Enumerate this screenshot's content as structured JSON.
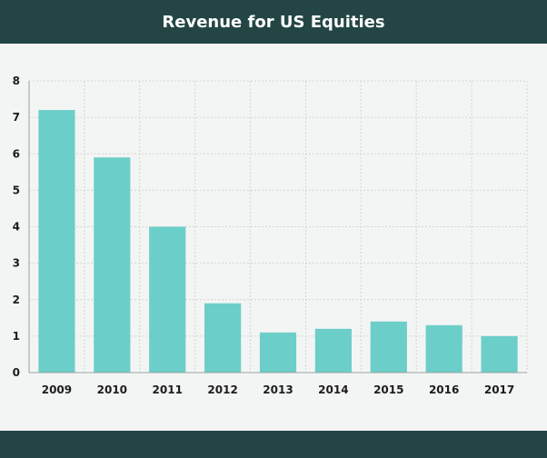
{
  "chart_data": {
    "type": "bar",
    "title": "Revenue for US Equities",
    "categories": [
      "2009",
      "2010",
      "2011",
      "2012",
      "2013",
      "2014",
      "2015",
      "2016",
      "2017"
    ],
    "values": [
      7.2,
      5.9,
      4.0,
      1.9,
      1.1,
      1.2,
      1.4,
      1.3,
      1.0
    ],
    "ylim": [
      0,
      8
    ],
    "yticks": [
      "0",
      "1",
      "2",
      "3",
      "4",
      "5",
      "6",
      "7",
      "8"
    ],
    "xlabel": "",
    "ylabel": "",
    "grid": true,
    "colors": {
      "bar": "#6ccec8",
      "header": "#234645",
      "background": "#f3f5f4",
      "grid": "#cfd6d4",
      "axis": "#9aa3a1",
      "text": "#1d1d1d"
    }
  }
}
